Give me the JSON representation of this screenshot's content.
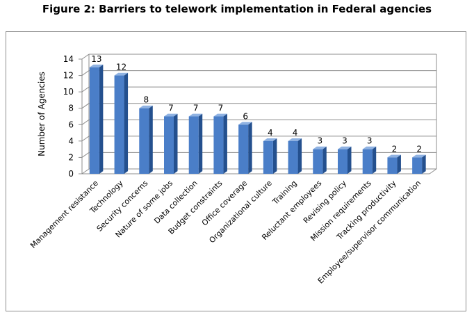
{
  "figure_title": "Figure 2:  Barriers to telework implementation in Federal agencies",
  "colors": {
    "bar_front": "#4a7ec8",
    "bar_side": "#24508e",
    "bar_top": "#8fb2e2",
    "grid": "#8c8c8c"
  },
  "chart_data": {
    "type": "bar",
    "title": "",
    "xlabel": "",
    "ylabel": "Number of Agencies",
    "ylim": [
      0,
      14
    ],
    "yticks": [
      0,
      2,
      4,
      6,
      8,
      10,
      12,
      14
    ],
    "grid": true,
    "style": "3d",
    "categories": [
      "Management resistance",
      "Technology",
      "Security concerns",
      "Nature of some jobs",
      "Data collection",
      "Budget constraints",
      "Office coverage",
      "Organizational culture",
      "Training",
      "Reluctant employees",
      "Revising policy",
      "Mission requirements",
      "Tracking productivity",
      "Employee/supervisor communication"
    ],
    "values": [
      13,
      12,
      8,
      7,
      7,
      7,
      6,
      4,
      4,
      3,
      3,
      3,
      2,
      2
    ],
    "data_labels": true
  }
}
